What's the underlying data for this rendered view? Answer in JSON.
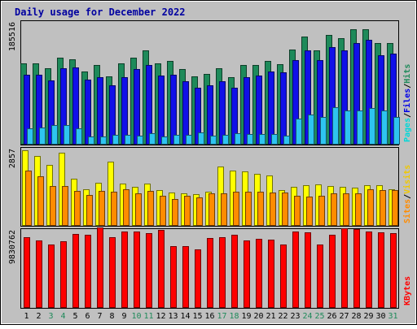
{
  "chart_data": {
    "type": "bar",
    "title": "Daily usage for December 2022",
    "categories": [
      "1",
      "2",
      "3",
      "4",
      "5",
      "6",
      "7",
      "8",
      "9",
      "10",
      "11",
      "12",
      "13",
      "14",
      "15",
      "16",
      "17",
      "18",
      "19",
      "20",
      "21",
      "22",
      "23",
      "24",
      "25",
      "26",
      "27",
      "28",
      "29",
      "30",
      "31"
    ],
    "weekend_categories": [
      "3",
      "4",
      "10",
      "11",
      "17",
      "18",
      "24",
      "25",
      "31"
    ],
    "panels": [
      {
        "id": "requests",
        "max_label": "185516",
        "legend": [
          "Pages",
          "/",
          "Files",
          "/",
          "Hits"
        ],
        "ylim": [
          0,
          185516
        ],
        "series": [
          {
            "name": "Hits",
            "color": "#1e8a5a",
            "values": [
              123000,
              123000,
              115000,
              132000,
              129000,
              111000,
              120000,
              103000,
              123000,
              131000,
              142000,
              123000,
              126000,
              114000,
              103000,
              107000,
              115000,
              102000,
              121000,
              121000,
              126000,
              122000,
              144000,
              163000,
              143000,
              166000,
              161000,
              175000,
              174000,
              153000,
              153000
            ]
          },
          {
            "name": "Files",
            "color": "#1010e8",
            "values": [
              106000,
              106000,
              97000,
              116000,
              117000,
              98000,
              102000,
              90000,
              102000,
              114000,
              121000,
              104000,
              106000,
              96000,
              86000,
              90000,
              96000,
              86000,
              102000,
              104000,
              111000,
              109000,
              128000,
              142000,
              128000,
              148000,
              142000,
              154000,
              158000,
              135000,
              137000
            ]
          },
          {
            "name": "Pages",
            "color": "#2ec4f0",
            "values": [
              25000,
              26000,
              29000,
              29000,
              25000,
              12000,
              12000,
              15000,
              15000,
              14000,
              17000,
              12000,
              15000,
              15000,
              18000,
              13000,
              15000,
              17000,
              16000,
              16000,
              16000,
              13000,
              39000,
              45000,
              42000,
              56000,
              52000,
              51000,
              55000,
              51000,
              42000
            ]
          }
        ]
      },
      {
        "id": "visits",
        "max_label": "2857",
        "legend": [
          "Sites",
          "/",
          "Visits"
        ],
        "ylim": [
          0,
          2857
        ],
        "series": [
          {
            "name": "Visits",
            "color": "#ffff00",
            "values": [
              2800,
              2600,
              2270,
              2700,
              1750,
              1340,
              1580,
              2380,
              1550,
              1440,
              1570,
              1310,
              1230,
              1200,
              1160,
              1260,
              2200,
              2050,
              2010,
              1930,
              1860,
              1310,
              1430,
              1510,
              1530,
              1470,
              1440,
              1410,
              1500,
              1500,
              1360
            ]
          },
          {
            "name": "Sites",
            "color": "#ff8c00",
            "values": [
              2040,
              1820,
              1460,
              1460,
              1300,
              1140,
              1280,
              1260,
              1350,
              1190,
              1300,
              1100,
              1000,
              1100,
              1050,
              1200,
              1200,
              1250,
              1260,
              1260,
              1230,
              1230,
              1110,
              1070,
              1110,
              1190,
              1210,
              1200,
              1360,
              1330,
              1330
            ]
          }
        ]
      },
      {
        "id": "kbytes",
        "max_label": "9830762",
        "legend": [
          "KBytes"
        ],
        "ylim": [
          0,
          9830762
        ],
        "series": [
          {
            "name": "KBytes",
            "color": "#ff0000",
            "values": [
              8950000,
              8500000,
              7990000,
              8430000,
              9350000,
              9180000,
              10130000,
              8950000,
              9600000,
              9600000,
              9470000,
              9790000,
              7830000,
              7830000,
              7350000,
              8770000,
              8940000,
              9180000,
              8500000,
              8670000,
              8650000,
              8010000,
              9580000,
              9510000,
              8010000,
              9180000,
              10060000,
              9960000,
              9670000,
              9480000,
              9440000
            ]
          }
        ]
      }
    ],
    "legend_colors": {
      "Pages": "#00d8d8",
      "Files": "#0000e8",
      "Hits": "#1e8a5a",
      "Sites": "#ff8c00",
      "Visits": "#f0c800",
      "KBytes": "#ff0000",
      "separator": "#000000"
    }
  }
}
